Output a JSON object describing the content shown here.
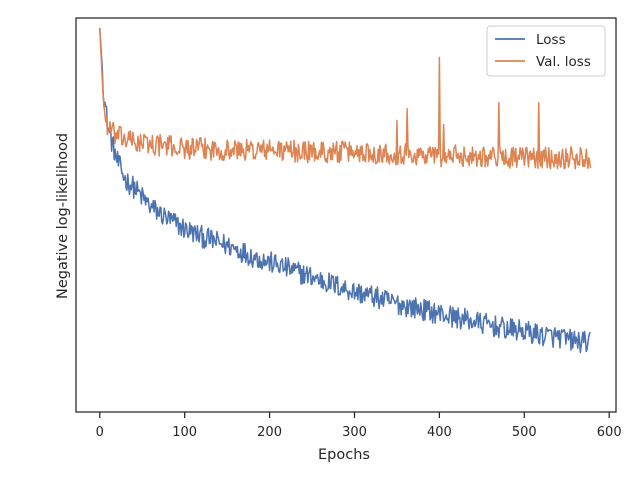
{
  "chart_data": {
    "type": "line",
    "xlabel": "Epochs",
    "ylabel": "Negative log-likelihood",
    "xlim": [
      -28,
      608
    ],
    "xticks": [
      0,
      100,
      200,
      300,
      400,
      500,
      600
    ],
    "ylim": [
      0,
      1
    ],
    "yticks_shown": false,
    "grid": false,
    "legend_position": "upper right",
    "series": [
      {
        "name": "Loss",
        "color": "#4c72b0",
        "points": [
          [
            0,
            0.975
          ],
          [
            5,
            0.8
          ],
          [
            10,
            0.72
          ],
          [
            15,
            0.68
          ],
          [
            20,
            0.64
          ],
          [
            30,
            0.59
          ],
          [
            40,
            0.57
          ],
          [
            50,
            0.545
          ],
          [
            60,
            0.52
          ],
          [
            70,
            0.505
          ],
          [
            80,
            0.49
          ],
          [
            100,
            0.465
          ],
          [
            120,
            0.445
          ],
          [
            140,
            0.43
          ],
          [
            160,
            0.415
          ],
          [
            180,
            0.395
          ],
          [
            200,
            0.38
          ],
          [
            220,
            0.365
          ],
          [
            240,
            0.35
          ],
          [
            260,
            0.335
          ],
          [
            280,
            0.32
          ],
          [
            300,
            0.305
          ],
          [
            320,
            0.295
          ],
          [
            340,
            0.28
          ],
          [
            360,
            0.27
          ],
          [
            380,
            0.26
          ],
          [
            400,
            0.25
          ],
          [
            420,
            0.24
          ],
          [
            440,
            0.23
          ],
          [
            460,
            0.22
          ],
          [
            480,
            0.21
          ],
          [
            500,
            0.205
          ],
          [
            520,
            0.195
          ],
          [
            540,
            0.19
          ],
          [
            560,
            0.18
          ],
          [
            578,
            0.175
          ]
        ],
        "noise": 0.028
      },
      {
        "name": "Val. loss",
        "color": "#dd8452",
        "points": [
          [
            0,
            0.975
          ],
          [
            3,
            0.84
          ],
          [
            6,
            0.75
          ],
          [
            10,
            0.72
          ],
          [
            20,
            0.7
          ],
          [
            40,
            0.685
          ],
          [
            60,
            0.68
          ],
          [
            100,
            0.67
          ],
          [
            150,
            0.665
          ],
          [
            200,
            0.665
          ],
          [
            250,
            0.66
          ],
          [
            300,
            0.66
          ],
          [
            350,
            0.655
          ],
          [
            400,
            0.65
          ],
          [
            450,
            0.65
          ],
          [
            500,
            0.645
          ],
          [
            550,
            0.645
          ],
          [
            578,
            0.645
          ]
        ],
        "noise": 0.028,
        "spikes": [
          [
            400,
            0.9
          ],
          [
            470,
            0.785
          ],
          [
            517,
            0.785
          ],
          [
            362,
            0.77
          ],
          [
            350,
            0.74
          ],
          [
            405,
            0.73
          ]
        ]
      }
    ]
  }
}
